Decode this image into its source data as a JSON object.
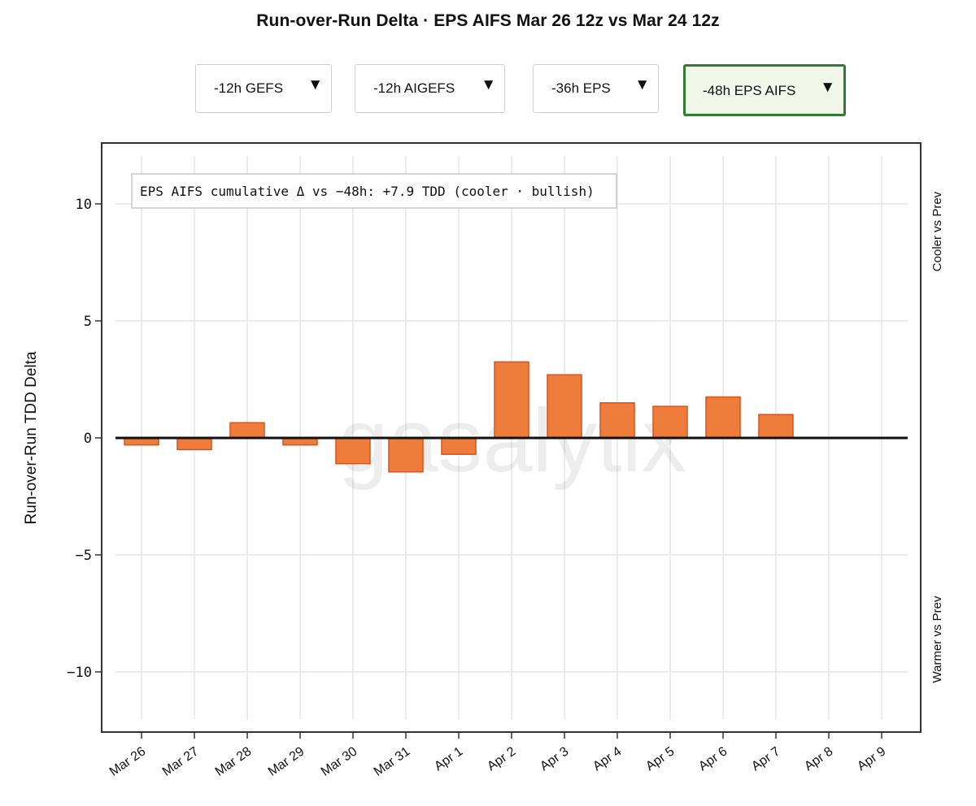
{
  "title": "Run-over-Run Delta · EPS AIFS Mar 26 12z vs Mar 24 12z",
  "dropdowns": [
    {
      "label": "-12h GEFS",
      "active": false
    },
    {
      "label": "-12h AIGEFS",
      "active": false
    },
    {
      "label": "-36h EPS",
      "active": false
    },
    {
      "label": "-48h EPS AIFS",
      "active": true
    }
  ],
  "arrow_glyph": "▼",
  "watermark": "gasalytix",
  "colors": {
    "bar_fill": "#ee7d3b",
    "bar_stroke": "#d9531e",
    "active_border": "#2e7d32",
    "active_bg": "#f1f8e9"
  },
  "chart_data": {
    "type": "bar",
    "title": "Run-over-Run Delta · EPS AIFS Mar 26 12z vs Mar 24 12z",
    "ylabel": "Run-over-Run TDD Delta",
    "xlabel": "",
    "ylim": [
      -12.5,
      12.5
    ],
    "yticks": [
      10,
      5,
      0,
      -5,
      -10
    ],
    "ytick_labels": [
      "10",
      "5",
      "0",
      "−5",
      "−10"
    ],
    "grid": true,
    "categories": [
      "Mar 26",
      "Mar 27",
      "Mar 28",
      "Mar 29",
      "Mar 30",
      "Mar 31",
      "Apr 1",
      "Apr 2",
      "Apr 3",
      "Apr 4",
      "Apr 5",
      "Apr 6",
      "Apr 7",
      "Apr 8",
      "Apr 9"
    ],
    "values": [
      -0.3,
      -0.5,
      0.65,
      -0.3,
      -1.1,
      -1.45,
      -0.7,
      3.25,
      2.7,
      1.5,
      1.35,
      1.75,
      1.0,
      null,
      null
    ],
    "annotation": "EPS AIFS cumulative Δ vs −48h: +7.9 TDD (cooler · bullish)",
    "right_label_top": "Cooler vs Prev",
    "right_label_bottom": "Warmer vs Prev"
  }
}
